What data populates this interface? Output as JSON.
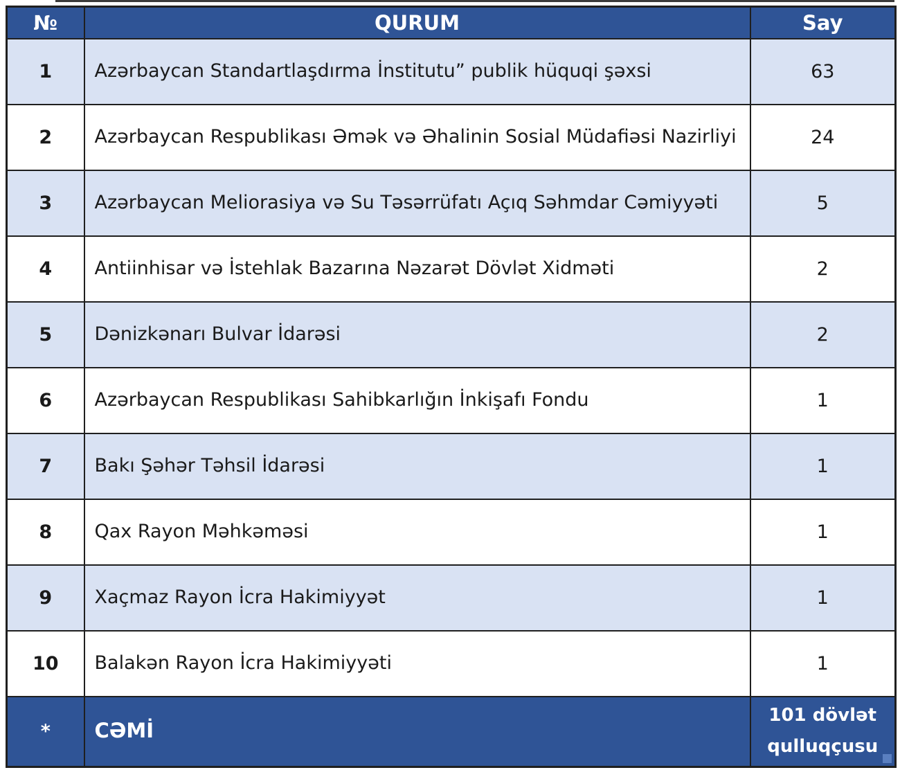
{
  "table": {
    "columns": [
      {
        "key": "no",
        "label": "№"
      },
      {
        "key": "qurum",
        "label": "QURUM"
      },
      {
        "key": "say",
        "label": "Say"
      }
    ],
    "rows": [
      {
        "no": "1",
        "qurum": "Azərbaycan Standartlaşdırma İnstitutu” publik hüquqi şəxsi",
        "say": "63"
      },
      {
        "no": "2",
        "qurum": "Azərbaycan Respublikası Əmək və Əhalinin Sosial Müdafiəsi Nazirliyi",
        "say": "24"
      },
      {
        "no": "3",
        "qurum": "Azərbaycan Meliorasiya və Su Təsərrüfatı Açıq Səhmdar Cəmiyyəti",
        "say": "5"
      },
      {
        "no": "4",
        "qurum": "Antiinhisar və İstehlak Bazarına Nəzarət Dövlət Xidməti",
        "say": "2"
      },
      {
        "no": "5",
        "qurum": "Dənizkənarı Bulvar İdarəsi",
        "say": "2"
      },
      {
        "no": "6",
        "qurum": "Azərbaycan Respublikası Sahibkarlığın İnkişafı Fondu",
        "say": "1"
      },
      {
        "no": "7",
        "qurum": "Bakı Şəhər Təhsil İdarəsi",
        "say": "1"
      },
      {
        "no": "8",
        "qurum": "Qax Rayon Məhkəməsi",
        "say": "1"
      },
      {
        "no": "9",
        "qurum": "Xaçmaz Rayon İcra Hakimiyyət",
        "say": "1"
      },
      {
        "no": "10",
        "qurum": "Balakən Rayon İcra Hakimiyyəti",
        "say": "1"
      }
    ],
    "footer": {
      "no": "*",
      "qurum": "CƏMİ",
      "say": "101 dövlət qulluqçusu"
    }
  },
  "colors": {
    "header_bg": "#2F5496",
    "footer_bg": "#2F5496",
    "alt_row_bg": "#D9E2F3",
    "row_bg": "#FFFFFF",
    "border": "#1F1F1F",
    "header_text": "#FFFFFF",
    "body_text": "#1A1A1A"
  }
}
